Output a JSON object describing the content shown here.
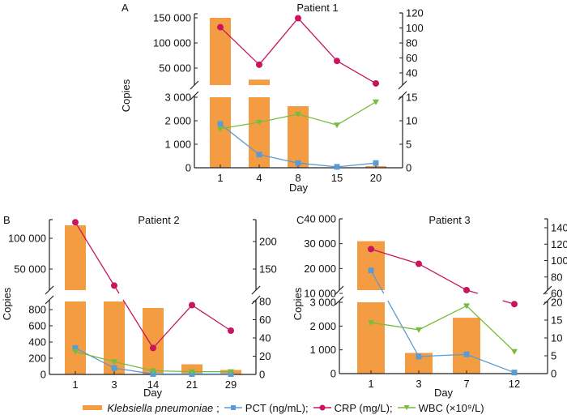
{
  "colors": {
    "bar": "#f39c42",
    "pct": "#5b9bd5",
    "crp": "#c8155e",
    "wbc": "#77bc3f",
    "axis": "#222222"
  },
  "legend": {
    "bar_label": "Klebsiella pneumoniae",
    "pct_label": "PCT (ng/mL);",
    "crp_label": "CRP (mg/L);",
    "wbc_label": "WBC (×10⁹/L)",
    "sep": ";"
  },
  "chart_data": [
    {
      "type": "bar",
      "panel": "A",
      "title": "Patient 1",
      "xlabel": "Day",
      "ylabel": "Copies",
      "categories": [
        "1",
        "4",
        "8",
        "15",
        "20"
      ],
      "left_axis": {
        "broken": true,
        "lower_range": [
          0,
          3000
        ],
        "lower_ticks": [
          "0",
          "1 000",
          "2 000",
          "3 000"
        ],
        "upper_range": [
          16000,
          155000
        ],
        "upper_ticks": [
          "50 000",
          "100 000",
          "150 000"
        ]
      },
      "right_axis": {
        "broken": true,
        "lower_range": [
          0,
          15
        ],
        "lower_ticks": [
          "0",
          "5",
          "10",
          "15"
        ],
        "upper_range": [
          22,
          122
        ],
        "upper_ticks": [
          "40",
          "60",
          "80",
          "100",
          "120"
        ]
      },
      "series": [
        {
          "name": "Klebsiella pneumoniae",
          "kind": "bar",
          "axis": "left",
          "values": [
            150000,
            27000,
            2620,
            0,
            70
          ]
        },
        {
          "name": "PCT (ng/mL)",
          "kind": "line",
          "axis": "right",
          "values": [
            9.3,
            2.8,
            1.0,
            0.2,
            1.0
          ]
        },
        {
          "name": "CRP (mg/L)",
          "kind": "line",
          "axis": "right",
          "values": [
            101,
            51,
            113,
            56,
            26
          ]
        },
        {
          "name": "WBC (×10⁹/L)",
          "kind": "line",
          "axis": "right",
          "values": [
            8.3,
            9.7,
            11.4,
            9.1,
            14.0
          ]
        }
      ]
    },
    {
      "type": "bar",
      "panel": "B",
      "title": "Patient 2",
      "xlabel": "Day",
      "ylabel": "Copies",
      "categories": [
        "1",
        "3",
        "14",
        "21",
        "29"
      ],
      "left_axis": {
        "broken": true,
        "lower_range": [
          0,
          900
        ],
        "lower_ticks": [
          "0",
          "200",
          "400",
          "600",
          "800"
        ],
        "upper_range": [
          12000,
          130000
        ],
        "upper_ticks": [
          "50 000",
          "100 000"
        ]
      },
      "right_axis": {
        "broken": true,
        "lower_range": [
          0,
          80
        ],
        "lower_ticks": [
          "0",
          "20",
          "40",
          "60",
          "80"
        ],
        "upper_range": [
          112,
          245
        ],
        "upper_ticks": [
          "150",
          "200"
        ]
      },
      "series": [
        {
          "name": "Klebsiella pneumoniae",
          "kind": "bar",
          "axis": "left",
          "values": [
            121000,
            900,
            820,
            125,
            55
          ]
        },
        {
          "name": "PCT (ng/mL)",
          "kind": "line",
          "axis": "right",
          "values": [
            29,
            7,
            0.5,
            0.5,
            0.5
          ]
        },
        {
          "name": "CRP (mg/L)",
          "kind": "line",
          "axis": "right",
          "values": [
            235,
            120,
            29,
            76,
            48
          ]
        },
        {
          "name": "WBC (×10⁹/L)",
          "kind": "line",
          "axis": "right",
          "values": [
            25,
            14,
            4,
            3,
            3
          ]
        }
      ]
    },
    {
      "type": "bar",
      "panel": "C",
      "title": "Patient 3",
      "xlabel": "Day",
      "ylabel": "Copies",
      "categories": [
        "1",
        "3",
        "7",
        "12"
      ],
      "left_axis": {
        "broken": true,
        "lower_range": [
          0,
          3000
        ],
        "lower_ticks": [
          "0",
          "1 000",
          "2 000",
          "3 000"
        ],
        "upper_range": [
          10000,
          40000
        ],
        "upper_ticks": [
          "10 000",
          "20 000",
          "30 000",
          "40 000"
        ]
      },
      "right_axis": {
        "broken": true,
        "lower_range": [
          0,
          20
        ],
        "lower_ticks": [
          "0",
          "5",
          "10",
          "15",
          "20"
        ],
        "upper_range": [
          60,
          145
        ],
        "upper_ticks": [
          "60",
          "80",
          "100",
          "120",
          "140"
        ]
      },
      "series": [
        {
          "name": "Klebsiella pneumoniae",
          "kind": "bar",
          "axis": "left",
          "values": [
            31000,
            870,
            2350,
            0
          ]
        },
        {
          "name": "PCT (ng/mL)",
          "kind": "line",
          "axis": "right",
          "values": [
            88,
            4.8,
            5.4,
            0.3
          ]
        },
        {
          "name": "CRP (mg/L)",
          "kind": "line",
          "axis": "right",
          "values": [
            114,
            96,
            64,
            19.5
          ]
        },
        {
          "name": "WBC (×10⁹/L)",
          "kind": "line",
          "axis": "right",
          "values": [
            14.3,
            12.3,
            19.0,
            6.2
          ]
        }
      ]
    }
  ]
}
